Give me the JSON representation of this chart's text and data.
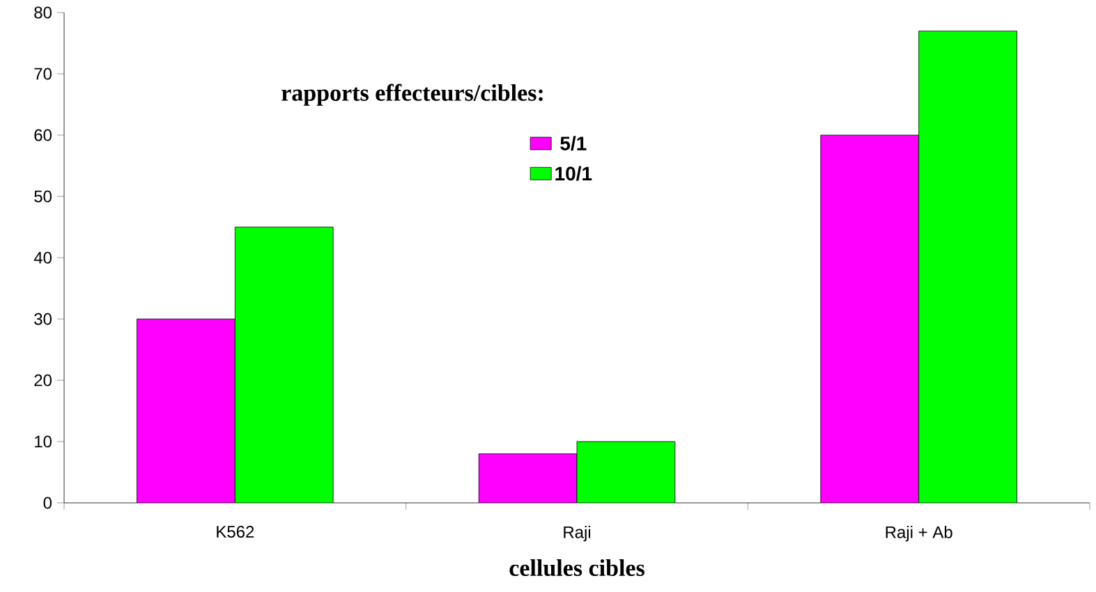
{
  "chart_data": {
    "type": "bar",
    "legend_title": "rapports effecteurs/cibles:",
    "xlabel": "cellules cibles",
    "categories": [
      "K562",
      "Raji",
      "Raji + Ab"
    ],
    "series": [
      {
        "name": "5/1",
        "color": "#ff00ff",
        "values": [
          30,
          8,
          60
        ]
      },
      {
        "name": "10/1",
        "color": "#00ff00",
        "values": [
          45,
          10,
          77
        ]
      }
    ],
    "ylim": [
      0,
      80
    ],
    "yticks": [
      0,
      10,
      20,
      30,
      40,
      50,
      60,
      70,
      80
    ],
    "grid": false,
    "legend": "top"
  }
}
